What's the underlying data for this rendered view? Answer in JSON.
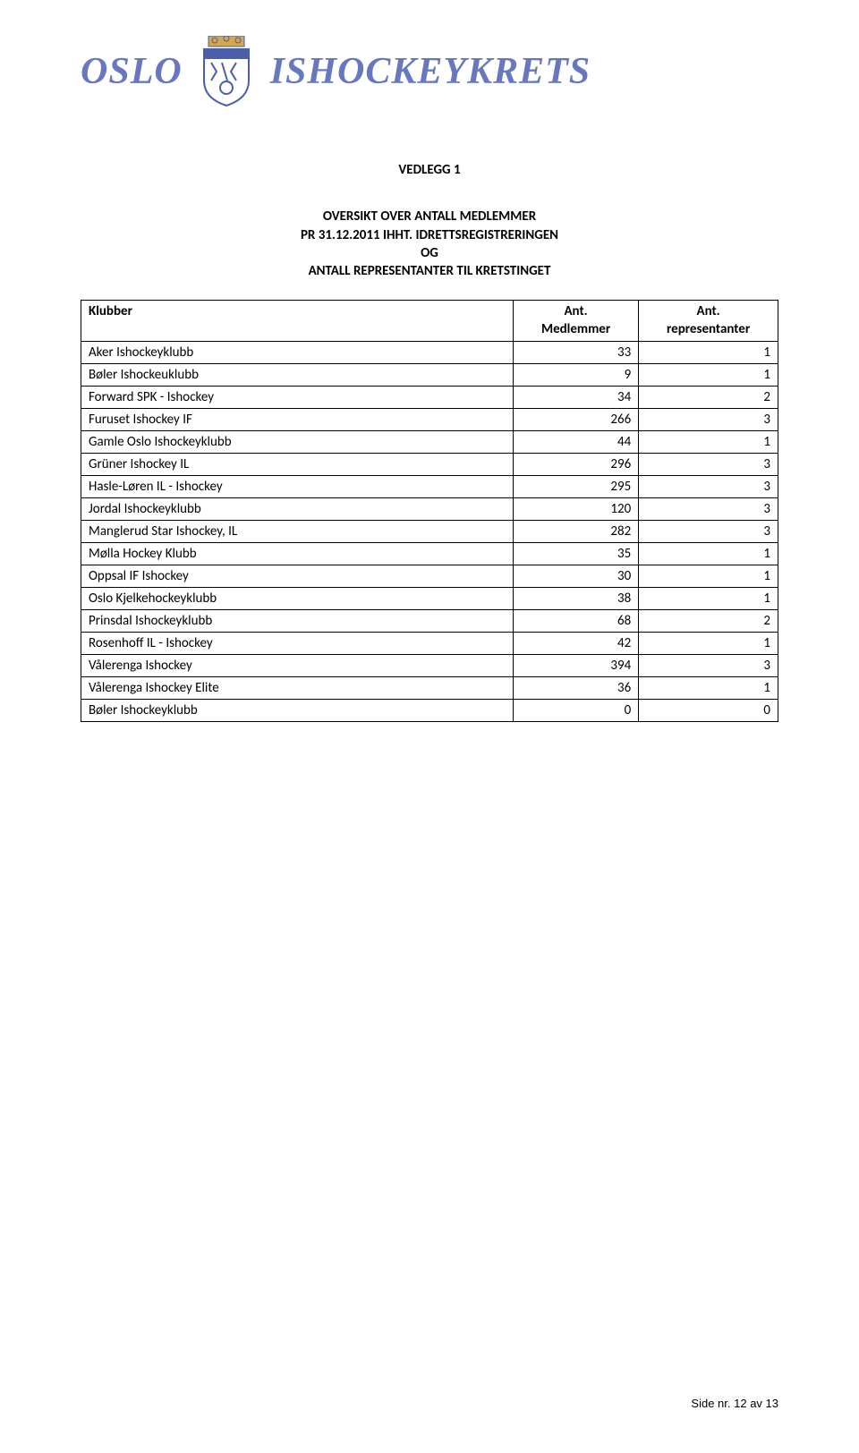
{
  "header": {
    "logo_left": "OSLO",
    "logo_right": "ISHOCKEYKRETS",
    "emblem_colors": {
      "shield_fill": "#ffffff",
      "shield_stroke": "#4a5fa8",
      "crown_fill": "#d4a84a",
      "text_fill": "#4a5fa8"
    }
  },
  "title_block": {
    "line1": "VEDLEGG 1"
  },
  "subtitle_block": {
    "line1": "OVERSIKT OVER ANTALL MEDLEMMER",
    "line2": "PR 31.12.2011 IHHT. IDRETTSREGISTRERINGEN",
    "line3": "OG",
    "line4": "ANTALL REPRESENTANTER TIL KRETSTINGET"
  },
  "table": {
    "headers": {
      "klubber": "Klubber",
      "medlemmer_l1": "Ant.",
      "medlemmer_l2": "Medlemmer",
      "representanter_l1": "Ant.",
      "representanter_l2": "representanter"
    },
    "rows": [
      {
        "club": "Aker Ishockeyklubb",
        "members": "33",
        "reps": "1"
      },
      {
        "club": "Bøler Ishockeuklubb",
        "members": "9",
        "reps": "1"
      },
      {
        "club": "Forward SPK - Ishockey",
        "members": "34",
        "reps": "2"
      },
      {
        "club": "Furuset Ishockey IF",
        "members": "266",
        "reps": "3"
      },
      {
        "club": "Gamle Oslo Ishockeyklubb",
        "members": "44",
        "reps": "1"
      },
      {
        "club": "Grüner Ishockey IL",
        "members": "296",
        "reps": "3"
      },
      {
        "club": "Hasle-Løren IL - Ishockey",
        "members": "295",
        "reps": "3"
      },
      {
        "club": "Jordal Ishockeyklubb",
        "members": "120",
        "reps": "3"
      },
      {
        "club": "Manglerud Star Ishockey, IL",
        "members": "282",
        "reps": "3"
      },
      {
        "club": "Mølla Hockey Klubb",
        "members": "35",
        "reps": "1"
      },
      {
        "club": "Oppsal IF Ishockey",
        "members": "30",
        "reps": "1"
      },
      {
        "club": "Oslo Kjelkehockeyklubb",
        "members": "38",
        "reps": "1"
      },
      {
        "club": "Prinsdal Ishockeyklubb",
        "members": "68",
        "reps": "2"
      },
      {
        "club": "Rosenhoff IL - Ishockey",
        "members": "42",
        "reps": "1"
      },
      {
        "club": "Vålerenga Ishockey",
        "members": "394",
        "reps": "3"
      },
      {
        "club": "Vålerenga Ishockey Elite",
        "members": "36",
        "reps": "1"
      },
      {
        "club": "Bøler Ishockeyklubb",
        "members": "0",
        "reps": "0"
      }
    ]
  },
  "footer": {
    "text": "Side nr. 12 av 13"
  },
  "styles": {
    "text_color": "#000000",
    "logo_color": "#6778c0",
    "border_color": "#000000",
    "background_color": "#ffffff",
    "title_fontsize": 15,
    "body_fontsize": 15,
    "footer_fontsize": 13,
    "logo_fontsize": 42
  }
}
